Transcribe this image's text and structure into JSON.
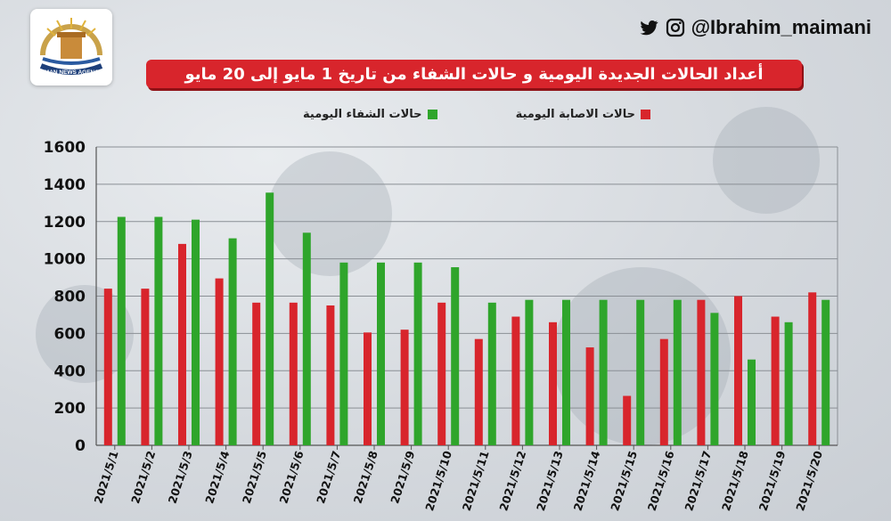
{
  "header": {
    "social_handle": "@Ibrahim_maimani",
    "logo_text": "OMAN NEWS AGENCY"
  },
  "colors": {
    "cases": "#d8252c",
    "recoveries": "#2fa52b",
    "banner": "#d8252c"
  },
  "chart_data": {
    "type": "bar",
    "title": "أعداد الحالات الجديدة اليومية و حالات الشفاء من تاريخ 1 مايو إلى 20 مايو",
    "xlabel": "",
    "ylabel": "",
    "ylim": [
      0,
      1600
    ],
    "yticks": [
      "1600",
      "1400",
      "1200",
      "1000",
      "800",
      "600",
      "400",
      "200",
      "0"
    ],
    "grid": true,
    "legend_position": "top",
    "categories": [
      "2021/5/1",
      "2021/5/2",
      "2021/5/3",
      "2021/5/4",
      "2021/5/5",
      "2021/5/6",
      "2021/5/7",
      "2021/5/8",
      "2021/5/9",
      "2021/5/10",
      "2021/5/11",
      "2021/5/12",
      "2021/5/13",
      "2021/5/14",
      "2021/5/15",
      "2021/5/16",
      "2021/5/17",
      "2021/5/18",
      "2021/5/19",
      "2021/5/20"
    ],
    "series": [
      {
        "name": "حالات الاصابة اليومية",
        "color": "#d8252c",
        "values": [
          840,
          840,
          1080,
          895,
          765,
          765,
          750,
          605,
          620,
          765,
          570,
          690,
          660,
          525,
          265,
          570,
          780,
          800,
          690,
          820
        ]
      },
      {
        "name": "حالات الشفاء اليومية",
        "color": "#2fa52b",
        "values": [
          1225,
          1225,
          1210,
          1110,
          1355,
          1140,
          980,
          980,
          980,
          955,
          765,
          780,
          780,
          780,
          780,
          780,
          710,
          460,
          660,
          780
        ]
      }
    ]
  }
}
